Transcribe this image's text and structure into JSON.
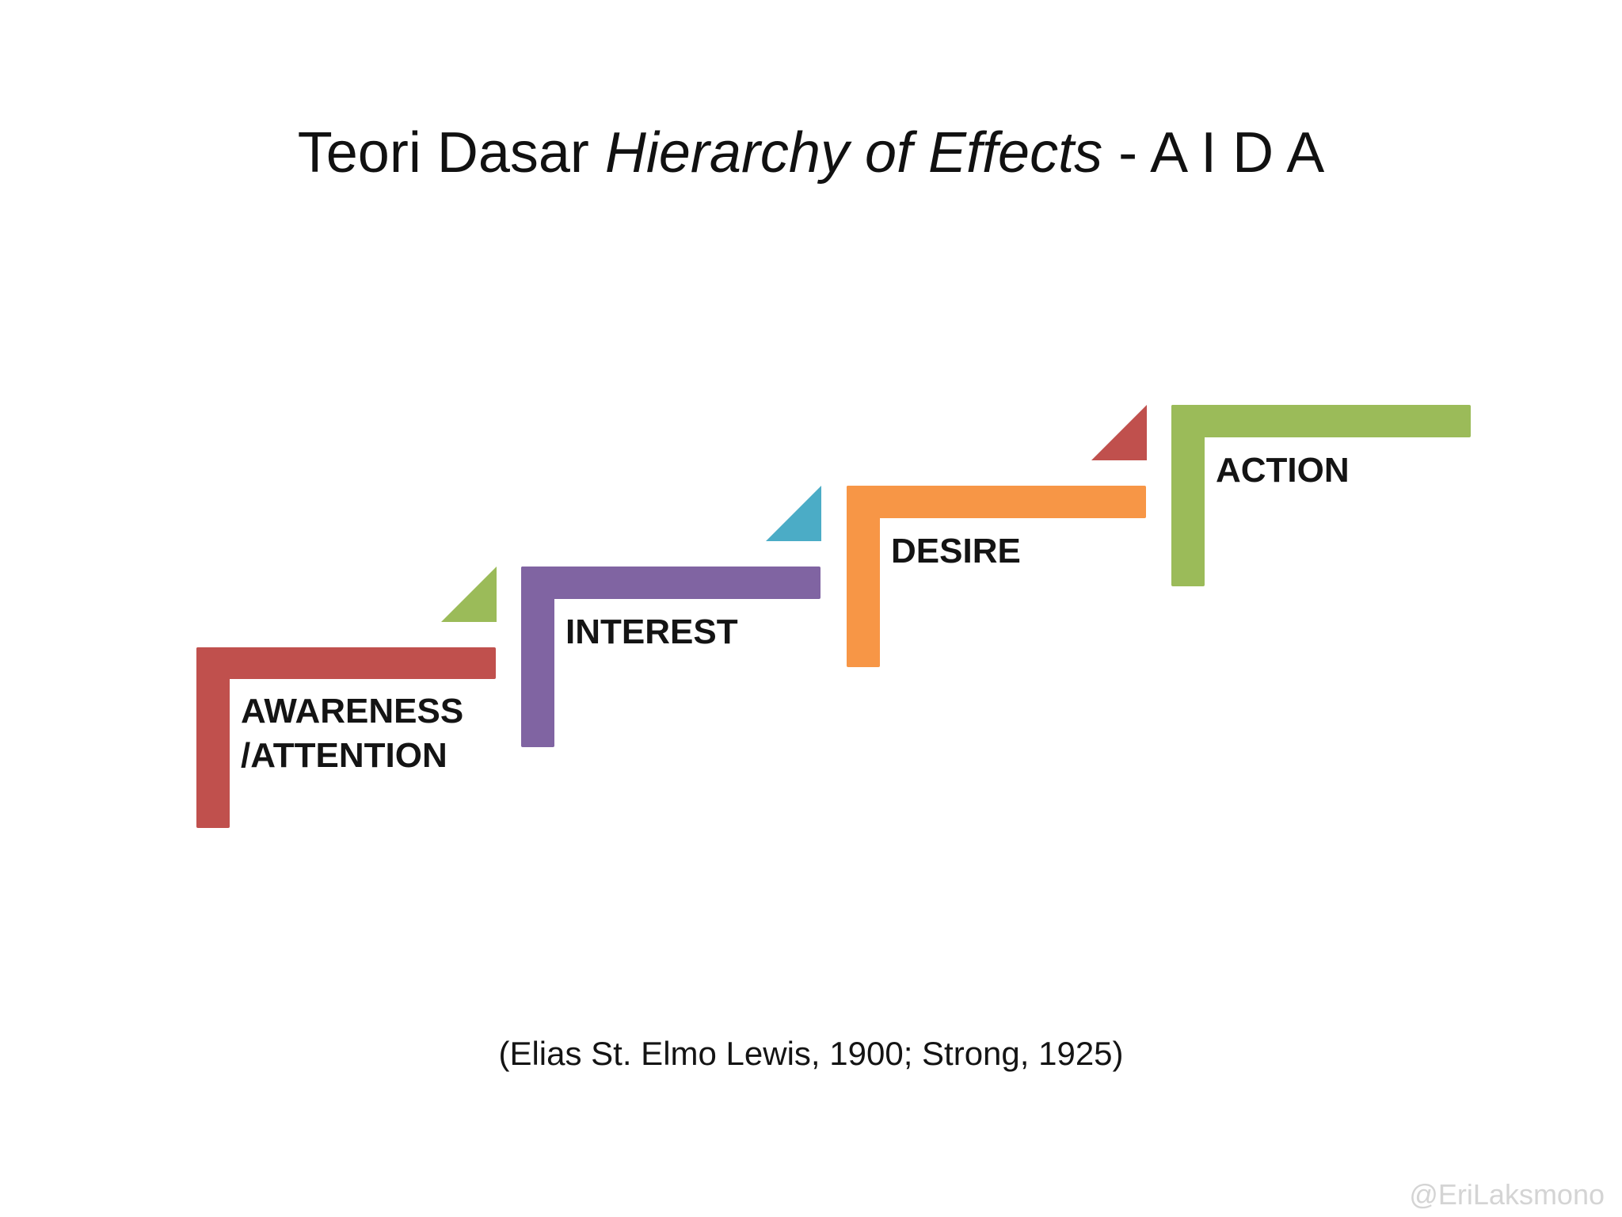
{
  "title": {
    "prefix": "Teori Dasar ",
    "italic": "Hierarchy of Effects",
    "suffix": " -  A I D A"
  },
  "steps": [
    {
      "line1": "AWARENESS",
      "line2": "/ATTENTION",
      "color": "#c0504d",
      "marker_color": "#9bbb59"
    },
    {
      "line1": "INTEREST",
      "color": "#8064a2",
      "marker_color": "#4bacc6"
    },
    {
      "line1": "DESIRE",
      "color": "#f79646",
      "marker_color": "#c0504d"
    },
    {
      "line1": "ACTION",
      "color": "#9bbb59"
    }
  ],
  "citation": "(Elias St. Elmo Lewis, 1900; Strong, 1925)",
  "watermark": "@EriLaksmono"
}
